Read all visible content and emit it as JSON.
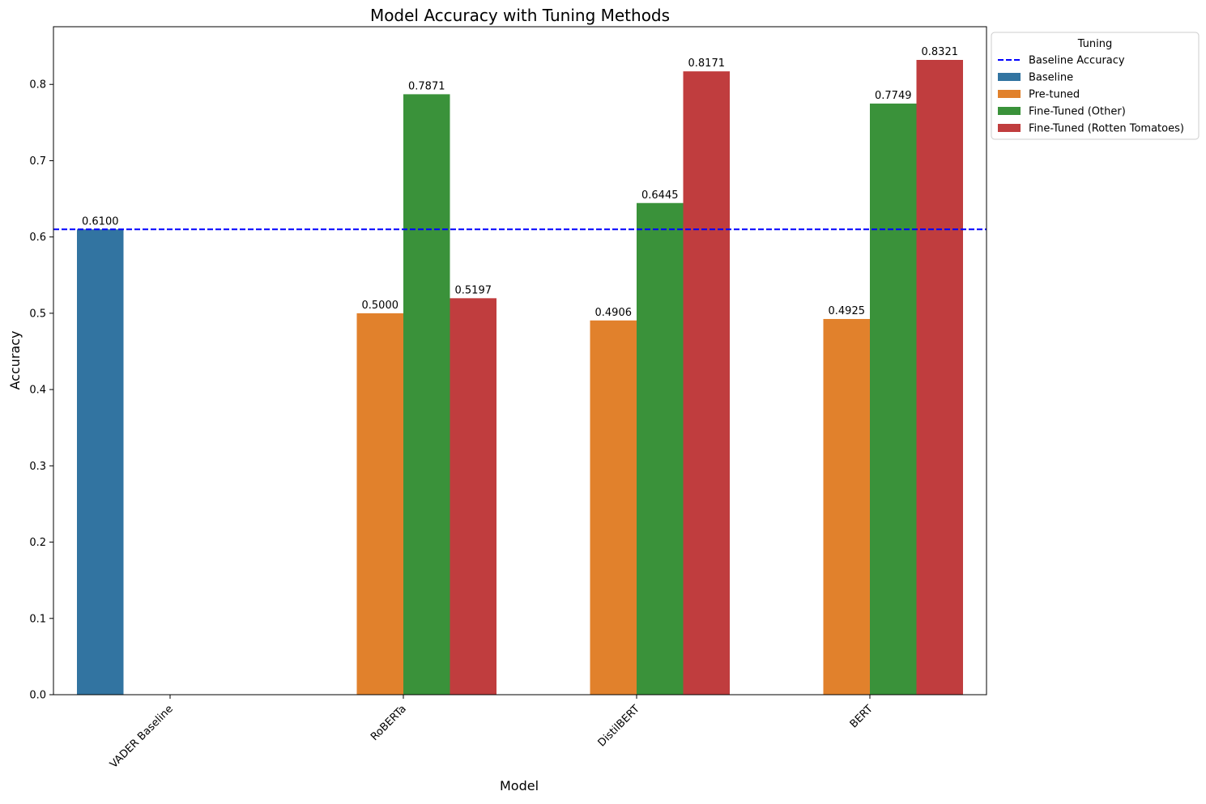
{
  "chart_data": {
    "type": "bar",
    "title": "Model Accuracy with Tuning Methods",
    "xlabel": "Model",
    "ylabel": "Accuracy",
    "categories": [
      "VADER Baseline",
      "RoBERTa",
      "DistilBERT",
      "BERT"
    ],
    "yticks": [
      "0.0",
      "0.1",
      "0.2",
      "0.3",
      "0.4",
      "0.5",
      "0.6",
      "0.7",
      "0.8"
    ],
    "ylim": [
      0,
      0.874
    ],
    "grid": false,
    "series": [
      {
        "name": "Baseline",
        "color": "#3274a1",
        "values": [
          0.61,
          null,
          null,
          null
        ],
        "labels": [
          "0.6100",
          "",
          "",
          ""
        ]
      },
      {
        "name": "Pre-tuned",
        "color": "#e1812c",
        "values": [
          null,
          0.5,
          0.4906,
          0.4925
        ],
        "labels": [
          "",
          "0.5000",
          "0.4906",
          "0.4925"
        ]
      },
      {
        "name": "Fine-Tuned (Other)",
        "color": "#3a923a",
        "values": [
          null,
          0.7871,
          0.6445,
          0.7749
        ],
        "labels": [
          "",
          "0.7871",
          "0.6445",
          "0.7749"
        ]
      },
      {
        "name": "Fine-Tuned (Rotten Tomatoes)",
        "color": "#c03d3e",
        "values": [
          null,
          0.5197,
          0.8171,
          0.8321
        ],
        "labels": [
          "",
          "0.5197",
          "0.8171",
          "0.8321"
        ]
      }
    ],
    "reference_line": {
      "name": "Baseline Accuracy",
      "value": 0.61,
      "color": "#0000ff",
      "style": "dashed"
    },
    "legend": {
      "title": "Tuning",
      "placement": "outside-top-right",
      "entries": [
        "Baseline Accuracy",
        "Baseline",
        "Pre-tuned",
        "Fine-Tuned (Other)",
        "Fine-Tuned (Rotten Tomatoes)"
      ]
    }
  }
}
